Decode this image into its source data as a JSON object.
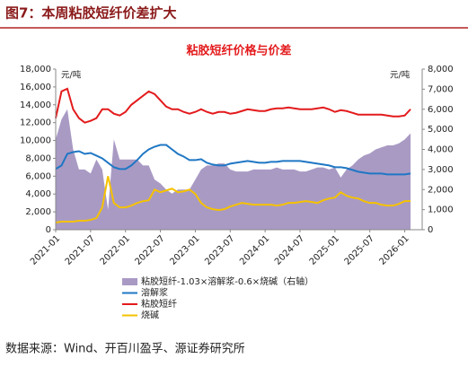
{
  "header": {
    "title": "图7：本周粘胶短纤价差扩大"
  },
  "source": "数据来源：Wind、开百川盈孚、源证券研究所",
  "chart_data": {
    "type": "line",
    "title": "粘胶短纤价格与价差",
    "ylabel": "元/吨",
    "y2label": "元/吨",
    "x": [
      "2021-01",
      "2021-02",
      "2021-03",
      "2021-04",
      "2021-05",
      "2021-06",
      "2021-07",
      "2021-08",
      "2021-09",
      "2021-10",
      "2021-11",
      "2021-12",
      "2022-01",
      "2022-02",
      "2022-03",
      "2022-04",
      "2022-05",
      "2022-06",
      "2022-07",
      "2022-08",
      "2022-09",
      "2022-10",
      "2022-11",
      "2022-12",
      "2023-01",
      "2023-02",
      "2023-03",
      "2023-04",
      "2023-05",
      "2023-06",
      "2023-07",
      "2023-08",
      "2023-09",
      "2023-10",
      "2023-11",
      "2023-12",
      "2024-01",
      "2024-02",
      "2024-03",
      "2024-04",
      "2024-05",
      "2024-06",
      "2024-07",
      "2024-08",
      "2024-09",
      "2024-10",
      "2024-11",
      "2024-12",
      "2025-01",
      "2025-02",
      "2025-03",
      "2025-04",
      "2025-05",
      "2025-06",
      "2025-07",
      "2025-08",
      "2025-09",
      "2025-10",
      "2025-11",
      "2025-12",
      "2026-01",
      "2026-02"
    ],
    "xlim": [
      "2021-01",
      "2026-04"
    ],
    "xticks": [
      "2021-01",
      "2021-07",
      "2022-01",
      "2022-07",
      "2023-01",
      "2023-07",
      "2024-01",
      "2024-07",
      "2025-01",
      "2025-07",
      "2026-01"
    ],
    "ylim": [
      0,
      18000
    ],
    "yticks": [
      0,
      {
        "value": 2000,
        "label": "2,000"
      },
      {
        "value": 4000,
        "label": "4,000"
      },
      {
        "value": 6000,
        "label": "6,000"
      },
      {
        "value": 8000,
        "label": "8,000"
      },
      {
        "value": 10000,
        "label": "10,000"
      },
      {
        "value": 12000,
        "label": "12,000"
      },
      {
        "value": 14000,
        "label": "14,000"
      },
      {
        "value": 16000,
        "label": "16,000"
      },
      {
        "value": 18000,
        "label": "18,000"
      }
    ],
    "y2lim": [
      0,
      8000
    ],
    "y2ticks": [
      0,
      {
        "value": 1000,
        "label": "1,000"
      },
      {
        "value": 2000,
        "label": "2,000"
      },
      {
        "value": 3000,
        "label": "3,000"
      },
      {
        "value": 4000,
        "label": "4,000"
      },
      {
        "value": 5000,
        "label": "5,000"
      },
      {
        "value": 6000,
        "label": "6,000"
      },
      {
        "value": 7000,
        "label": "7,000"
      },
      {
        "value": 8000,
        "label": "8,000"
      }
    ],
    "series": [
      {
        "name": "粘胶短纤-1.03×溶解浆-0.6×烧碱（右轴）",
        "type": "area",
        "axis": "y2",
        "color": "#a99ac4",
        "values": [
          4500,
          5500,
          6000,
          4000,
          3000,
          3000,
          2800,
          3500,
          3000,
          1000,
          4500,
          3500,
          3500,
          3500,
          3500,
          3200,
          3200,
          2500,
          2300,
          2000,
          1800,
          2000,
          2000,
          2000,
          2500,
          3000,
          3200,
          3200,
          3300,
          3300,
          3000,
          2900,
          2900,
          2900,
          3000,
          3000,
          3000,
          3000,
          3100,
          3000,
          3000,
          3000,
          2900,
          2900,
          3000,
          3100,
          3100,
          3000,
          3100,
          2600,
          3000,
          3200,
          3500,
          3700,
          3800,
          4000,
          4100,
          4200,
          4200,
          4300,
          4500,
          4800
        ]
      },
      {
        "name": "溶解浆",
        "type": "line",
        "color": "#1f77c4",
        "values": [
          6800,
          7200,
          8500,
          8700,
          8800,
          8500,
          8600,
          8300,
          8000,
          7500,
          7000,
          6800,
          6800,
          7200,
          7800,
          8500,
          9000,
          9300,
          9500,
          9500,
          9000,
          8500,
          8200,
          7800,
          7800,
          7900,
          7500,
          7300,
          7200,
          7200,
          7400,
          7500,
          7600,
          7700,
          7600,
          7500,
          7500,
          7600,
          7600,
          7700,
          7700,
          7700,
          7700,
          7600,
          7500,
          7400,
          7300,
          7200,
          7000,
          7000,
          6900,
          6700,
          6500,
          6400,
          6300,
          6300,
          6300,
          6200,
          6200,
          6200,
          6200,
          6300
        ]
      },
      {
        "name": "粘胶短纤",
        "type": "line",
        "color": "#e31a1c",
        "values": [
          12500,
          15500,
          15800,
          13500,
          12500,
          12000,
          12200,
          12500,
          13500,
          13500,
          13000,
          12800,
          13200,
          14000,
          14500,
          15000,
          15500,
          15200,
          14500,
          13800,
          13500,
          13500,
          13200,
          13000,
          13200,
          13500,
          13200,
          13000,
          13200,
          13200,
          13000,
          13100,
          13300,
          13500,
          13400,
          13300,
          13300,
          13500,
          13600,
          13600,
          13700,
          13600,
          13500,
          13500,
          13500,
          13600,
          13700,
          13500,
          13200,
          13400,
          13300,
          13100,
          12900,
          12900,
          12900,
          12900,
          12900,
          12800,
          12700,
          12700,
          12800,
          13500
        ]
      },
      {
        "name": "烧碱",
        "type": "line",
        "color": "#f5c200",
        "values": [
          800,
          900,
          900,
          900,
          1000,
          1000,
          1100,
          1300,
          2500,
          6000,
          3000,
          2500,
          2500,
          2700,
          3000,
          3200,
          3300,
          4500,
          4200,
          4400,
          4600,
          4200,
          4300,
          4500,
          4000,
          3000,
          2500,
          2300,
          2200,
          2300,
          2600,
          2800,
          3000,
          2900,
          2800,
          2800,
          2800,
          2800,
          2700,
          2800,
          3000,
          3000,
          3100,
          3200,
          3100,
          3000,
          3300,
          3500,
          3600,
          4200,
          3800,
          3600,
          3500,
          3200,
          3000,
          3000,
          2800,
          2700,
          2700,
          2900,
          3200,
          3200
        ]
      }
    ]
  }
}
